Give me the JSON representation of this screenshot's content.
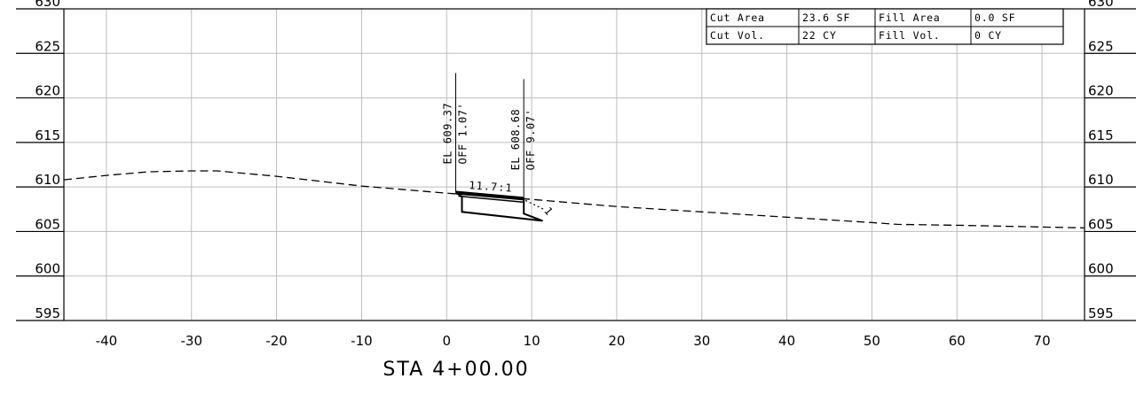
{
  "station_label": "STA 4+00.00",
  "quantities": {
    "rows": [
      [
        {
          "label": "Cut Area",
          "value": "23.6 SF"
        },
        {
          "label": "Fill Area",
          "value": "0.0 SF"
        }
      ],
      [
        {
          "label": "Cut Vol.",
          "value": "22 CY"
        },
        {
          "label": "Fill Vol.",
          "value": "0 CY"
        }
      ]
    ]
  },
  "elevation_ticks": [
    630,
    625,
    620,
    615,
    610,
    605,
    600,
    595
  ],
  "offset_ticks": [
    -40,
    -30,
    -20,
    -10,
    0,
    10,
    20,
    30,
    40,
    50,
    60,
    70
  ],
  "axes": {
    "offset_range": [
      -45,
      75
    ],
    "elevation_range": [
      595,
      630
    ]
  },
  "annotations": [
    {
      "elevation": "EL 609.37",
      "offset": "OFF 1.07'",
      "offset_value": 1.07,
      "elevation_value": 609.37
    },
    {
      "elevation": "EL 608.68",
      "offset": "OFF 9.07'",
      "offset_value": 9.07,
      "elevation_value": 608.68
    }
  ],
  "slope_label": "11.7:1",
  "side_slope_mark": "1",
  "existing_ground": [
    [
      -45,
      610.8
    ],
    [
      -40,
      611.3
    ],
    [
      -35,
      611.7
    ],
    [
      -30,
      611.8
    ],
    [
      -27,
      611.8
    ],
    [
      -20,
      611.2
    ],
    [
      -10,
      610.1
    ],
    [
      0,
      609.3
    ],
    [
      10,
      608.6
    ],
    [
      20,
      607.8
    ],
    [
      30,
      607.2
    ],
    [
      40,
      606.6
    ],
    [
      50,
      606.0
    ],
    [
      53,
      605.8
    ],
    [
      60,
      605.7
    ],
    [
      70,
      605.5
    ],
    [
      75,
      605.4
    ]
  ],
  "design_section": [
    [
      1.07,
      609.37
    ],
    [
      9.07,
      608.68
    ],
    [
      9.07,
      607.0
    ],
    [
      11.3,
      606.2
    ],
    [
      1.8,
      607.2
    ],
    [
      1.8,
      608.9
    ],
    [
      1.07,
      609.37
    ]
  ],
  "colors": {
    "grid": "#bdbdbd",
    "line": "#000000"
  }
}
